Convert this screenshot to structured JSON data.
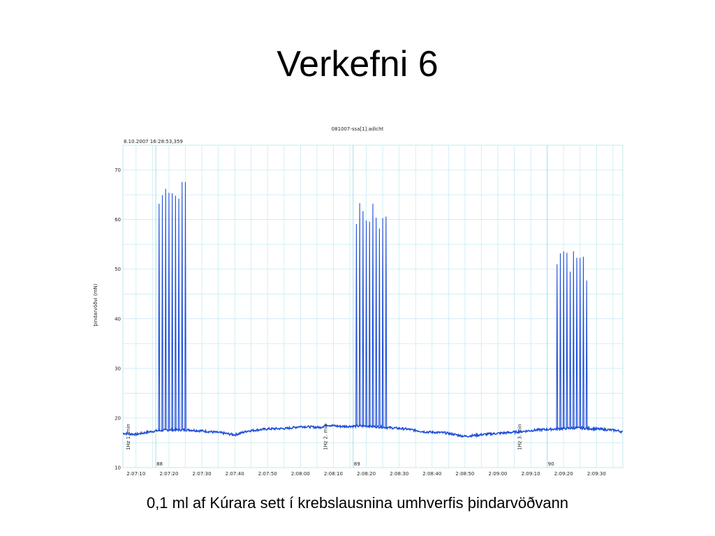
{
  "slide": {
    "title": "Verkefni 6",
    "caption": "0,1 ml af Kúrara sett í krebslausnina umhverfis þindarvöðvann"
  },
  "colors": {
    "trace": "#1f4fd8",
    "grid": "#bfe8f2",
    "marker": "#a9dbe6",
    "text": "#222222"
  },
  "chart_data": {
    "type": "line",
    "title": "081007-ssa[1].adicht",
    "subtitle": "8.10.2007 16:28:53,359",
    "ylabel": "þindarvöðvi (mN)",
    "xlabel": "",
    "ylim": [
      10,
      75
    ],
    "xlim": [
      "2:07:06",
      "2:09:38"
    ],
    "grid": true,
    "yticks": [
      10,
      20,
      30,
      40,
      50,
      60,
      70
    ],
    "xticks": [
      "2:07:10",
      "2:07:20",
      "2:07:30",
      "2:07:40",
      "2:07:50",
      "2:08:00",
      "2:08:10",
      "2:08:20",
      "2:08:30",
      "2:08:40",
      "2:08:50",
      "2:09:00",
      "2:09:10",
      "2:09:20",
      "2:09:30"
    ],
    "baseline": [
      {
        "t": "2:07:06",
        "v": 16.9
      },
      {
        "t": "2:07:10",
        "v": 16.7
      },
      {
        "t": "2:07:14",
        "v": 17.2
      },
      {
        "t": "2:07:16",
        "v": 17.4
      },
      {
        "t": "2:07:20",
        "v": 17.6
      },
      {
        "t": "2:07:26",
        "v": 17.6
      },
      {
        "t": "2:07:30",
        "v": 17.4
      },
      {
        "t": "2:07:36",
        "v": 17.0
      },
      {
        "t": "2:07:40",
        "v": 16.6
      },
      {
        "t": "2:07:44",
        "v": 17.4
      },
      {
        "t": "2:07:50",
        "v": 17.8
      },
      {
        "t": "2:07:56",
        "v": 17.9
      },
      {
        "t": "2:08:00",
        "v": 18.3
      },
      {
        "t": "2:08:06",
        "v": 18.1
      },
      {
        "t": "2:08:08",
        "v": 18.6
      },
      {
        "t": "2:08:12",
        "v": 18.3
      },
      {
        "t": "2:08:20",
        "v": 18.4
      },
      {
        "t": "2:08:26",
        "v": 18.1
      },
      {
        "t": "2:08:32",
        "v": 17.8
      },
      {
        "t": "2:08:38",
        "v": 17.2
      },
      {
        "t": "2:08:44",
        "v": 17.0
      },
      {
        "t": "2:08:50",
        "v": 16.3
      },
      {
        "t": "2:08:56",
        "v": 16.7
      },
      {
        "t": "2:09:00",
        "v": 16.9
      },
      {
        "t": "2:09:06",
        "v": 17.2
      },
      {
        "t": "2:09:12",
        "v": 17.6
      },
      {
        "t": "2:09:18",
        "v": 17.8
      },
      {
        "t": "2:09:24",
        "v": 18.0
      },
      {
        "t": "2:09:30",
        "v": 17.8
      },
      {
        "t": "2:09:36",
        "v": 17.5
      },
      {
        "t": "2:09:38",
        "v": 17.2
      }
    ],
    "series": [
      {
        "peaks": [
          {
            "t": "2:07:17.0",
            "v": 63.2
          },
          {
            "t": "2:07:18.0",
            "v": 64.9
          },
          {
            "t": "2:07:19.0",
            "v": 66.2
          },
          {
            "t": "2:07:20.0",
            "v": 65.4
          },
          {
            "t": "2:07:21.0",
            "v": 65.3
          },
          {
            "t": "2:07:22.0",
            "v": 64.8
          },
          {
            "t": "2:07:23.0",
            "v": 64.2
          },
          {
            "t": "2:07:24.0",
            "v": 67.6
          },
          {
            "t": "2:07:25.0",
            "v": 67.6
          }
        ]
      },
      {
        "peaks": [
          {
            "t": "2:08:17.0",
            "v": 59.1
          },
          {
            "t": "2:08:18.0",
            "v": 63.3
          },
          {
            "t": "2:08:19.0",
            "v": 61.7
          },
          {
            "t": "2:08:20.0",
            "v": 59.8
          },
          {
            "t": "2:08:21.0",
            "v": 59.6
          },
          {
            "t": "2:08:22.0",
            "v": 63.2
          },
          {
            "t": "2:08:23.0",
            "v": 60.4
          },
          {
            "t": "2:08:24.0",
            "v": 58.2
          },
          {
            "t": "2:08:25.0",
            "v": 60.3
          },
          {
            "t": "2:08:26.0",
            "v": 60.6
          }
        ]
      },
      {
        "peaks": [
          {
            "t": "2:09:18.0",
            "v": 51.0
          },
          {
            "t": "2:09:19.0",
            "v": 53.2
          },
          {
            "t": "2:09:20.0",
            "v": 53.6
          },
          {
            "t": "2:09:21.0",
            "v": 53.3
          },
          {
            "t": "2:09:22.0",
            "v": 49.5
          },
          {
            "t": "2:09:23.0",
            "v": 53.6
          },
          {
            "t": "2:09:24.0",
            "v": 52.3
          },
          {
            "t": "2:09:25.0",
            "v": 52.3
          },
          {
            "t": "2:09:26.0",
            "v": 52.5
          },
          {
            "t": "2:09:27.0",
            "v": 47.7
          }
        ]
      }
    ],
    "comments": [
      {
        "t": "2:07:16",
        "number": "88",
        "text": "1Hz 1. min"
      },
      {
        "t": "2:08:16",
        "number": "89",
        "text": "1Hz 2. min"
      },
      {
        "t": "2:09:15",
        "number": "90",
        "text": "1Hz 3. min"
      }
    ]
  }
}
